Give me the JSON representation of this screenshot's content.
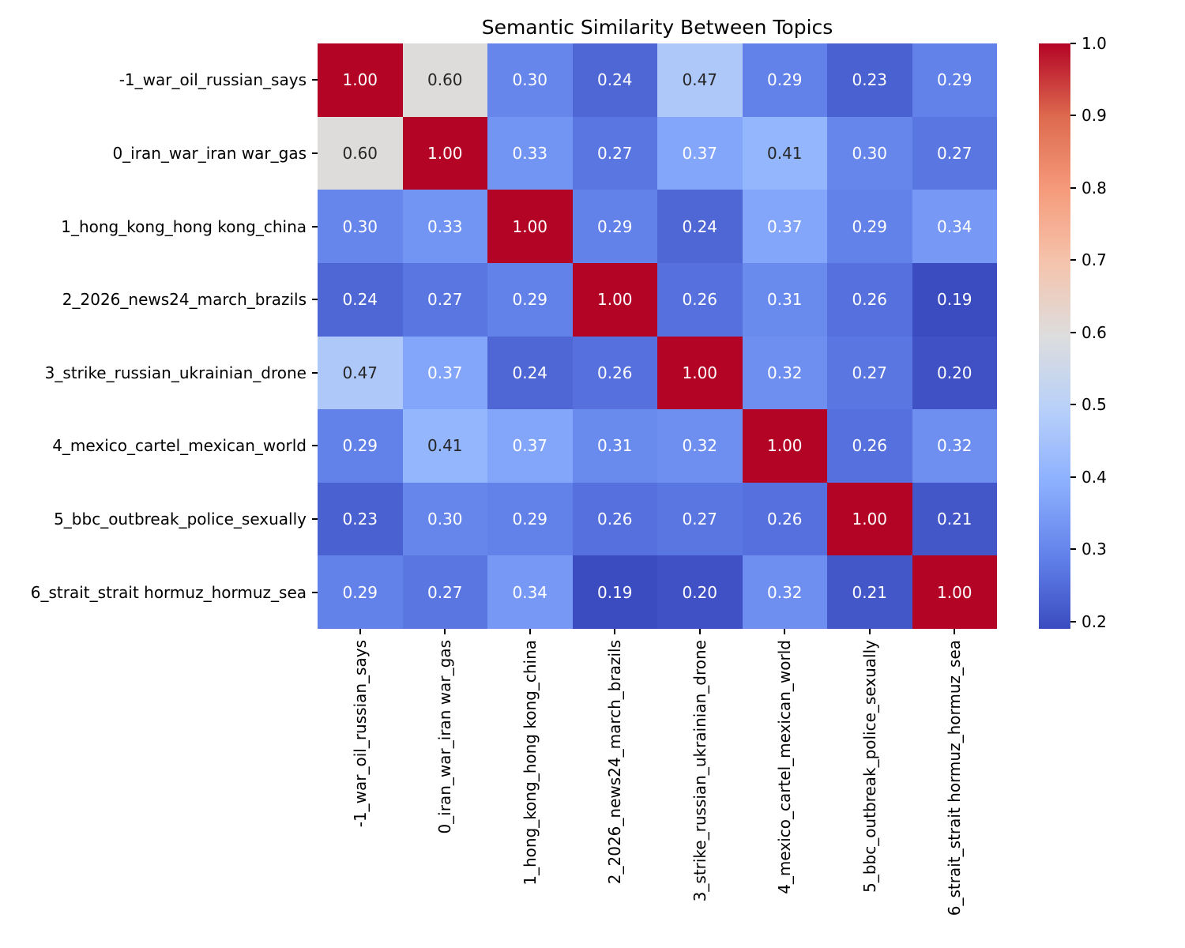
{
  "title": "Semantic Similarity Between Topics",
  "chart_data": {
    "type": "heatmap",
    "title": "Semantic Similarity Between Topics",
    "labels": [
      "-1_war_oil_russian_says",
      "0_iran_war_iran war_gas",
      "1_hong_kong_hong kong_china",
      "2_2026_news24_march_brazils",
      "3_strike_russian_ukrainian_drone",
      "4_mexico_cartel_mexican_world",
      "5_bbc_outbreak_police_sexually",
      "6_strait_strait hormuz_hormuz_sea"
    ],
    "matrix": [
      [
        1.0,
        0.6,
        0.3,
        0.24,
        0.47,
        0.29,
        0.23,
        0.29
      ],
      [
        0.6,
        1.0,
        0.33,
        0.27,
        0.37,
        0.41,
        0.3,
        0.27
      ],
      [
        0.3,
        0.33,
        1.0,
        0.29,
        0.24,
        0.37,
        0.29,
        0.34
      ],
      [
        0.24,
        0.27,
        0.29,
        1.0,
        0.26,
        0.31,
        0.26,
        0.19
      ],
      [
        0.47,
        0.37,
        0.24,
        0.26,
        1.0,
        0.32,
        0.27,
        0.2
      ],
      [
        0.29,
        0.41,
        0.37,
        0.31,
        0.32,
        1.0,
        0.26,
        0.32
      ],
      [
        0.23,
        0.3,
        0.29,
        0.26,
        0.27,
        0.26,
        1.0,
        0.21
      ],
      [
        0.29,
        0.27,
        0.34,
        0.19,
        0.2,
        0.32,
        0.21,
        1.0
      ]
    ],
    "vmin": 0.19,
    "vmax": 1.0,
    "annotation_decimals": 2,
    "colorbar_ticks": [
      "1.0",
      "0.9",
      "0.8",
      "0.7",
      "0.6",
      "0.5",
      "0.4",
      "0.3",
      "0.2"
    ],
    "colormap": {
      "name": "coolwarm",
      "anchors": [
        {
          "t": 0.0,
          "color": "#3b4cc0"
        },
        {
          "t": 0.125,
          "color": "#6282ea"
        },
        {
          "t": 0.25,
          "color": "#8db0fe"
        },
        {
          "t": 0.375,
          "color": "#b8d0f9"
        },
        {
          "t": 0.5,
          "color": "#dddddd"
        },
        {
          "t": 0.625,
          "color": "#f5c4ad"
        },
        {
          "t": 0.75,
          "color": "#f59b7b"
        },
        {
          "t": 0.875,
          "color": "#dd6a4e"
        },
        {
          "t": 1.0,
          "color": "#b40426"
        }
      ]
    },
    "annotation_dark_text_color": "#262626",
    "annotation_light_text_color": "#ffffff",
    "legend_position": "right",
    "grid": false
  }
}
